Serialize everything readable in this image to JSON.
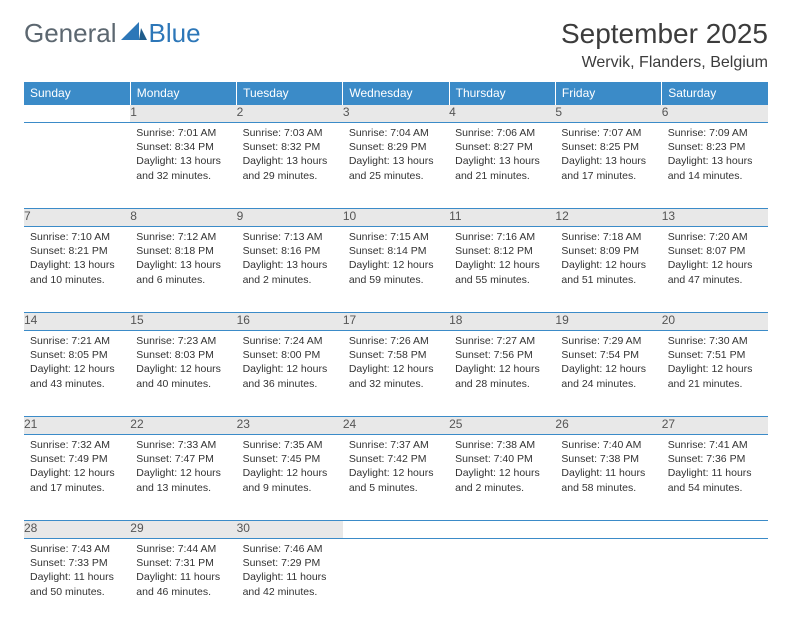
{
  "logo": {
    "general": "General",
    "blue": "Blue"
  },
  "title": "September 2025",
  "location": "Wervik, Flanders, Belgium",
  "colors": {
    "header_bg": "#3b8bc8",
    "header_text": "#ffffff",
    "daynum_bg": "#e8e8e8",
    "daynum_text": "#555555",
    "body_text": "#333333",
    "logo_gray": "#5c6770",
    "logo_blue": "#2d77b8",
    "rule": "#3b8bc8"
  },
  "typography": {
    "title_fontsize": 28,
    "location_fontsize": 16,
    "header_fontsize": 12,
    "cell_fontsize": 10.5
  },
  "columns": [
    "Sunday",
    "Monday",
    "Tuesday",
    "Wednesday",
    "Thursday",
    "Friday",
    "Saturday"
  ],
  "weeks": [
    [
      null,
      {
        "n": "1",
        "sr": "Sunrise: 7:01 AM",
        "ss": "Sunset: 8:34 PM",
        "d1": "Daylight: 13 hours",
        "d2": "and 32 minutes."
      },
      {
        "n": "2",
        "sr": "Sunrise: 7:03 AM",
        "ss": "Sunset: 8:32 PM",
        "d1": "Daylight: 13 hours",
        "d2": "and 29 minutes."
      },
      {
        "n": "3",
        "sr": "Sunrise: 7:04 AM",
        "ss": "Sunset: 8:29 PM",
        "d1": "Daylight: 13 hours",
        "d2": "and 25 minutes."
      },
      {
        "n": "4",
        "sr": "Sunrise: 7:06 AM",
        "ss": "Sunset: 8:27 PM",
        "d1": "Daylight: 13 hours",
        "d2": "and 21 minutes."
      },
      {
        "n": "5",
        "sr": "Sunrise: 7:07 AM",
        "ss": "Sunset: 8:25 PM",
        "d1": "Daylight: 13 hours",
        "d2": "and 17 minutes."
      },
      {
        "n": "6",
        "sr": "Sunrise: 7:09 AM",
        "ss": "Sunset: 8:23 PM",
        "d1": "Daylight: 13 hours",
        "d2": "and 14 minutes."
      }
    ],
    [
      {
        "n": "7",
        "sr": "Sunrise: 7:10 AM",
        "ss": "Sunset: 8:21 PM",
        "d1": "Daylight: 13 hours",
        "d2": "and 10 minutes."
      },
      {
        "n": "8",
        "sr": "Sunrise: 7:12 AM",
        "ss": "Sunset: 8:18 PM",
        "d1": "Daylight: 13 hours",
        "d2": "and 6 minutes."
      },
      {
        "n": "9",
        "sr": "Sunrise: 7:13 AM",
        "ss": "Sunset: 8:16 PM",
        "d1": "Daylight: 13 hours",
        "d2": "and 2 minutes."
      },
      {
        "n": "10",
        "sr": "Sunrise: 7:15 AM",
        "ss": "Sunset: 8:14 PM",
        "d1": "Daylight: 12 hours",
        "d2": "and 59 minutes."
      },
      {
        "n": "11",
        "sr": "Sunrise: 7:16 AM",
        "ss": "Sunset: 8:12 PM",
        "d1": "Daylight: 12 hours",
        "d2": "and 55 minutes."
      },
      {
        "n": "12",
        "sr": "Sunrise: 7:18 AM",
        "ss": "Sunset: 8:09 PM",
        "d1": "Daylight: 12 hours",
        "d2": "and 51 minutes."
      },
      {
        "n": "13",
        "sr": "Sunrise: 7:20 AM",
        "ss": "Sunset: 8:07 PM",
        "d1": "Daylight: 12 hours",
        "d2": "and 47 minutes."
      }
    ],
    [
      {
        "n": "14",
        "sr": "Sunrise: 7:21 AM",
        "ss": "Sunset: 8:05 PM",
        "d1": "Daylight: 12 hours",
        "d2": "and 43 minutes."
      },
      {
        "n": "15",
        "sr": "Sunrise: 7:23 AM",
        "ss": "Sunset: 8:03 PM",
        "d1": "Daylight: 12 hours",
        "d2": "and 40 minutes."
      },
      {
        "n": "16",
        "sr": "Sunrise: 7:24 AM",
        "ss": "Sunset: 8:00 PM",
        "d1": "Daylight: 12 hours",
        "d2": "and 36 minutes."
      },
      {
        "n": "17",
        "sr": "Sunrise: 7:26 AM",
        "ss": "Sunset: 7:58 PM",
        "d1": "Daylight: 12 hours",
        "d2": "and 32 minutes."
      },
      {
        "n": "18",
        "sr": "Sunrise: 7:27 AM",
        "ss": "Sunset: 7:56 PM",
        "d1": "Daylight: 12 hours",
        "d2": "and 28 minutes."
      },
      {
        "n": "19",
        "sr": "Sunrise: 7:29 AM",
        "ss": "Sunset: 7:54 PM",
        "d1": "Daylight: 12 hours",
        "d2": "and 24 minutes."
      },
      {
        "n": "20",
        "sr": "Sunrise: 7:30 AM",
        "ss": "Sunset: 7:51 PM",
        "d1": "Daylight: 12 hours",
        "d2": "and 21 minutes."
      }
    ],
    [
      {
        "n": "21",
        "sr": "Sunrise: 7:32 AM",
        "ss": "Sunset: 7:49 PM",
        "d1": "Daylight: 12 hours",
        "d2": "and 17 minutes."
      },
      {
        "n": "22",
        "sr": "Sunrise: 7:33 AM",
        "ss": "Sunset: 7:47 PM",
        "d1": "Daylight: 12 hours",
        "d2": "and 13 minutes."
      },
      {
        "n": "23",
        "sr": "Sunrise: 7:35 AM",
        "ss": "Sunset: 7:45 PM",
        "d1": "Daylight: 12 hours",
        "d2": "and 9 minutes."
      },
      {
        "n": "24",
        "sr": "Sunrise: 7:37 AM",
        "ss": "Sunset: 7:42 PM",
        "d1": "Daylight: 12 hours",
        "d2": "and 5 minutes."
      },
      {
        "n": "25",
        "sr": "Sunrise: 7:38 AM",
        "ss": "Sunset: 7:40 PM",
        "d1": "Daylight: 12 hours",
        "d2": "and 2 minutes."
      },
      {
        "n": "26",
        "sr": "Sunrise: 7:40 AM",
        "ss": "Sunset: 7:38 PM",
        "d1": "Daylight: 11 hours",
        "d2": "and 58 minutes."
      },
      {
        "n": "27",
        "sr": "Sunrise: 7:41 AM",
        "ss": "Sunset: 7:36 PM",
        "d1": "Daylight: 11 hours",
        "d2": "and 54 minutes."
      }
    ],
    [
      {
        "n": "28",
        "sr": "Sunrise: 7:43 AM",
        "ss": "Sunset: 7:33 PM",
        "d1": "Daylight: 11 hours",
        "d2": "and 50 minutes."
      },
      {
        "n": "29",
        "sr": "Sunrise: 7:44 AM",
        "ss": "Sunset: 7:31 PM",
        "d1": "Daylight: 11 hours",
        "d2": "and 46 minutes."
      },
      {
        "n": "30",
        "sr": "Sunrise: 7:46 AM",
        "ss": "Sunset: 7:29 PM",
        "d1": "Daylight: 11 hours",
        "d2": "and 42 minutes."
      },
      null,
      null,
      null,
      null
    ]
  ]
}
